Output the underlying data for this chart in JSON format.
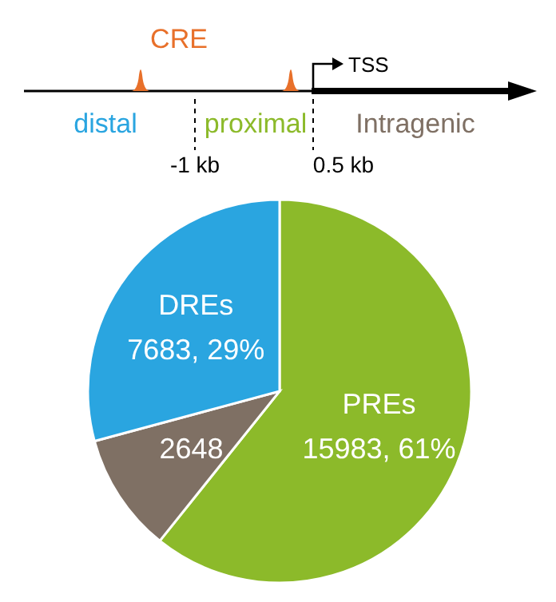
{
  "chart_data": {
    "type": "pie",
    "categories": [
      "PREs",
      null,
      "DREs"
    ],
    "values": [
      15983,
      2648,
      7683
    ],
    "colors": [
      "#8cba2a",
      "#7f7064",
      "#2aa5e0"
    ],
    "value_labels": [
      "15983, 61%",
      "2648",
      "7683, 29%"
    ],
    "annotations": [
      "CRE",
      "TSS",
      "distal",
      "proximal",
      "Intragenic",
      "-1 kb",
      "0.5 kb"
    ]
  }
}
